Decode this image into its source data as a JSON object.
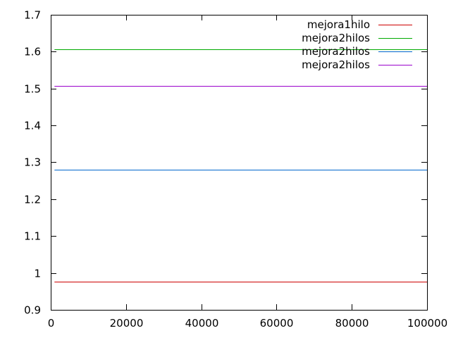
{
  "chart_data": {
    "type": "line",
    "title": "",
    "xlabel": "",
    "ylabel": "",
    "xlim": [
      0,
      100000
    ],
    "ylim": [
      0.9,
      1.7
    ],
    "x_ticks": [
      0,
      20000,
      40000,
      60000,
      80000,
      100000
    ],
    "y_ticks": [
      0.9,
      1,
      1.1,
      1.2,
      1.3,
      1.4,
      1.5,
      1.6,
      1.7
    ],
    "x_tick_labels": [
      "0",
      "20000",
      "40000",
      "60000",
      "80000",
      "100000"
    ],
    "y_tick_labels": [
      "0.9",
      "1",
      "1.1",
      "1.2",
      "1.3",
      "1.4",
      "1.5",
      "1.6",
      "1.7"
    ],
    "grid": false,
    "legend_position": "top-right",
    "series": [
      {
        "name": "mejora1hilo",
        "color": "#cc0000",
        "x": [
          1000,
          100000
        ],
        "y": [
          0.977,
          0.977
        ]
      },
      {
        "name": "mejora2hilos",
        "color": "#00aa00",
        "x": [
          1000,
          100000
        ],
        "y": [
          1.606,
          1.606
        ]
      },
      {
        "name": "mejora2hilos",
        "color": "#0066cc",
        "x": [
          1000,
          100000
        ],
        "y": [
          1.279,
          1.279
        ]
      },
      {
        "name": "mejora2hilos",
        "color": "#9900cc",
        "x": [
          1000,
          100000
        ],
        "y": [
          1.508,
          1.508
        ]
      }
    ]
  }
}
